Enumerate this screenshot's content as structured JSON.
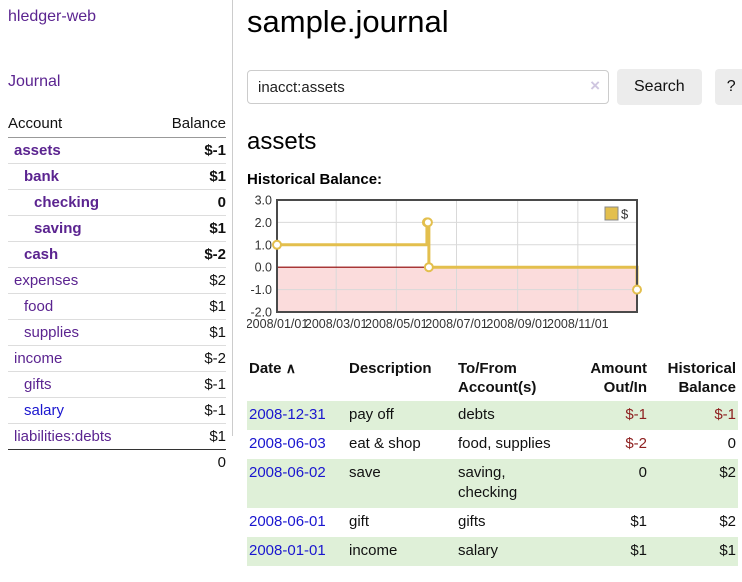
{
  "app": {
    "brand": "hledger-web",
    "nav_journal": "Journal"
  },
  "sidebar": {
    "headers": {
      "account": "Account",
      "balance": "Balance"
    },
    "accounts": [
      {
        "name": "assets",
        "depth": 0,
        "bold": true,
        "link": "purple",
        "balance": "$-1",
        "balance_class": "amt-negative-strong"
      },
      {
        "name": "bank",
        "depth": 1,
        "bold": true,
        "link": "purple",
        "balance": "$1",
        "balance_class": ""
      },
      {
        "name": "checking",
        "depth": 2,
        "bold": true,
        "link": "purple",
        "balance": "0",
        "balance_class": ""
      },
      {
        "name": "saving",
        "depth": 2,
        "bold": true,
        "link": "purple",
        "balance": "$1",
        "balance_class": ""
      },
      {
        "name": "cash",
        "depth": 1,
        "bold": true,
        "link": "purple",
        "balance": "$-2",
        "balance_class": "amt-negative-strong"
      },
      {
        "name": "expenses",
        "depth": 0,
        "bold": false,
        "link": "purple",
        "balance": "$2",
        "balance_class": ""
      },
      {
        "name": "food",
        "depth": 1,
        "bold": false,
        "link": "purple",
        "balance": "$1",
        "balance_class": ""
      },
      {
        "name": "supplies",
        "depth": 1,
        "bold": false,
        "link": "purple",
        "balance": "$1",
        "balance_class": ""
      },
      {
        "name": "income",
        "depth": 0,
        "bold": false,
        "link": "purple",
        "balance": "$-2",
        "balance_class": "amt-negative-muted"
      },
      {
        "name": "gifts",
        "depth": 1,
        "bold": false,
        "link": "purple",
        "balance": "$-1",
        "balance_class": "amt-negative-muted"
      },
      {
        "name": "salary",
        "depth": 1,
        "bold": false,
        "link": "blue",
        "balance": "$-1",
        "balance_class": "amt-negative-muted"
      },
      {
        "name": "liabilities:debts",
        "depth": 0,
        "bold": false,
        "link": "purple",
        "balance": "$1",
        "balance_class": ""
      }
    ],
    "total": "0"
  },
  "main": {
    "title": "sample.journal",
    "search": {
      "value": "inacct:assets",
      "clear_icon": "×",
      "search_button": "Search",
      "help_button": "?"
    },
    "account_heading": "assets",
    "chart_heading": "Historical Balance:"
  },
  "chart_data": {
    "type": "line",
    "step": true,
    "title": "Historical Balance",
    "series": [
      {
        "name": "$",
        "points": [
          [
            "2008-01-01",
            1.0
          ],
          [
            "2008-06-01",
            2.0
          ],
          [
            "2008-06-02",
            2.0
          ],
          [
            "2008-06-03",
            0.0
          ],
          [
            "2008-12-31",
            -1.0
          ]
        ]
      }
    ],
    "x_range": [
      "2008-01-01",
      "2008-12-31"
    ],
    "ylim": [
      -2.0,
      3.0
    ],
    "yticks": [
      "3.0",
      "2.0",
      "1.0",
      "0.0",
      "-1.0",
      "-2.0"
    ],
    "xticks": [
      {
        "label": "2008/01/01",
        "date": "2008-01-01"
      },
      {
        "label": "2008/03/01",
        "date": "2008-03-01"
      },
      {
        "label": "2008/05/01",
        "date": "2008-05-01"
      },
      {
        "label": "2008/07/01",
        "date": "2008-07-01"
      },
      {
        "label": "2008/09/01",
        "date": "2008-09-01"
      },
      {
        "label": "2008/11/01",
        "date": "2008-11-01"
      }
    ],
    "legend": {
      "label": "$",
      "position": "top-right"
    },
    "grid": true,
    "colors": {
      "line": "#e3bf4d",
      "marker_fill": "#ffffff",
      "negative_region": "#fbdcdc",
      "zero_line": "#8e0000",
      "grid": "#d9d9d9",
      "border": "#4a4a4a",
      "tick_text": "#333333"
    }
  },
  "register": {
    "headers": {
      "date": "Date",
      "sort_arrow": "∧",
      "description": "Description",
      "tofrom_line1": "To/From",
      "tofrom_line2": "Account(s)",
      "amount_line1": "Amount",
      "amount_line2": "Out/In",
      "balance_line1": "Historical",
      "balance_line2": "Balance"
    },
    "rows": [
      {
        "date": "2008-12-31",
        "description": "pay off",
        "accounts": "debts",
        "amount": "$-1",
        "amount_negative": true,
        "balance": "$-1",
        "balance_negative": true,
        "highlight": true
      },
      {
        "date": "2008-06-03",
        "description": "eat & shop",
        "accounts": "food, supplies",
        "amount": "$-2",
        "amount_negative": true,
        "balance": "0",
        "balance_negative": false,
        "highlight": false
      },
      {
        "date": "2008-06-02",
        "description": "save",
        "accounts": "saving, checking",
        "amount": "0",
        "amount_negative": false,
        "balance": "$2",
        "balance_negative": false,
        "highlight": true
      },
      {
        "date": "2008-06-01",
        "description": "gift",
        "accounts": "gifts",
        "amount": "$1",
        "amount_negative": false,
        "balance": "$2",
        "balance_negative": false,
        "highlight": false
      },
      {
        "date": "2008-01-01",
        "description": "income",
        "accounts": "salary",
        "amount": "$1",
        "amount_negative": false,
        "balance": "$1",
        "balance_negative": false,
        "highlight": true
      }
    ],
    "highlight_color": "#dff0d8"
  },
  "colors": {
    "link_purple": "#5b2490",
    "link_blue": "#1a16cf",
    "negative_strong": "#9c1515",
    "negative_muted": "#b87676",
    "divider": "#cccccc"
  }
}
